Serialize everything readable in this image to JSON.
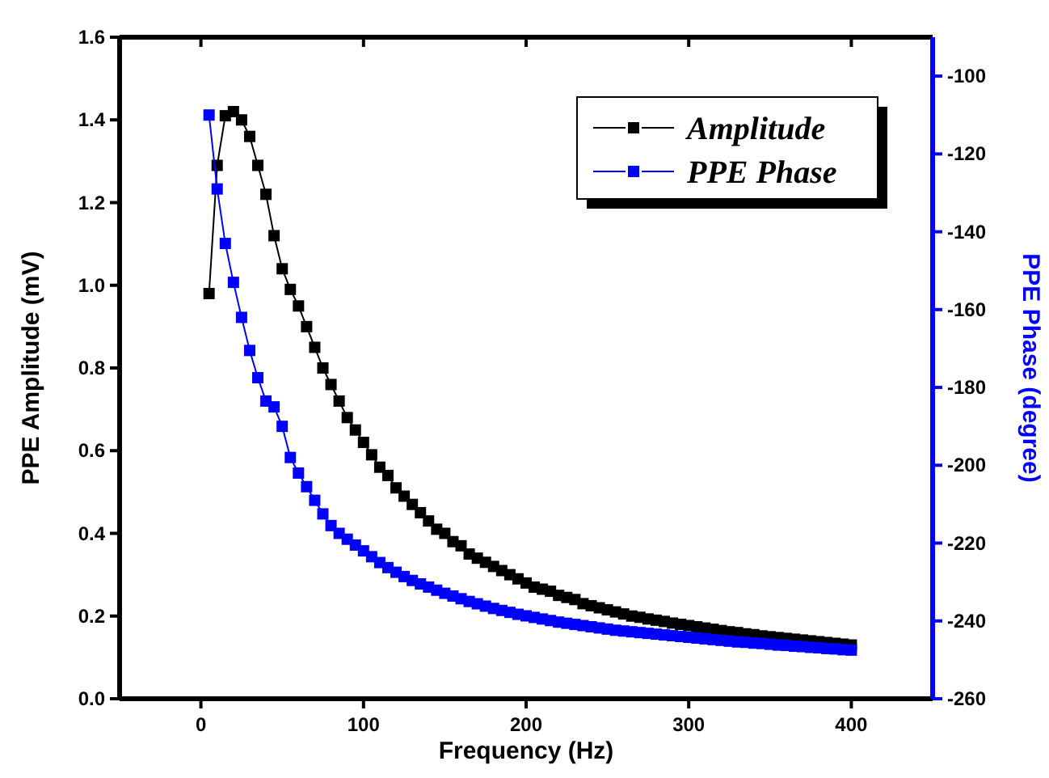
{
  "chart_data": {
    "type": "line",
    "xlabel": "Frequency (Hz)",
    "ylabel": "PPE Amplitude (mV)",
    "y2label": "PPE Phase (degree)",
    "x": [
      5,
      10,
      15,
      20,
      25,
      30,
      35,
      40,
      45,
      50,
      55,
      60,
      65,
      70,
      75,
      80,
      85,
      90,
      95,
      100,
      105,
      110,
      115,
      120,
      125,
      130,
      135,
      140,
      145,
      150,
      155,
      160,
      165,
      170,
      175,
      180,
      185,
      190,
      195,
      200,
      205,
      210,
      215,
      220,
      225,
      230,
      235,
      240,
      245,
      250,
      255,
      260,
      265,
      270,
      275,
      280,
      285,
      290,
      295,
      300,
      305,
      310,
      315,
      320,
      325,
      330,
      335,
      340,
      345,
      350,
      355,
      360,
      365,
      370,
      375,
      380,
      385,
      390,
      395,
      400
    ],
    "series": [
      {
        "name": "Amplitude",
        "color": "#000000",
        "values": [
          0.98,
          1.29,
          1.41,
          1.42,
          1.4,
          1.36,
          1.29,
          1.22,
          1.12,
          1.04,
          0.99,
          0.95,
          0.9,
          0.85,
          0.8,
          0.76,
          0.72,
          0.68,
          0.65,
          0.62,
          0.59,
          0.56,
          0.54,
          0.51,
          0.49,
          0.47,
          0.45,
          0.43,
          0.41,
          0.4,
          0.38,
          0.37,
          0.35,
          0.34,
          0.33,
          0.32,
          0.31,
          0.3,
          0.29,
          0.28,
          0.27,
          0.265,
          0.26,
          0.25,
          0.245,
          0.24,
          0.23,
          0.225,
          0.22,
          0.215,
          0.21,
          0.205,
          0.2,
          0.197,
          0.193,
          0.19,
          0.187,
          0.183,
          0.18,
          0.177,
          0.174,
          0.171,
          0.168,
          0.165,
          0.162,
          0.16,
          0.157,
          0.155,
          0.152,
          0.15,
          0.148,
          0.146,
          0.144,
          0.142,
          0.14,
          0.138,
          0.136,
          0.134,
          0.132,
          0.13
        ]
      },
      {
        "name": "PPE Phase",
        "color": "#0000ff",
        "axis": "y2",
        "values": [
          -110,
          -129,
          -143,
          -153,
          -162,
          -170.5,
          -177.5,
          -183.5,
          -185,
          -190,
          -198,
          -202,
          -205.5,
          -209,
          -212.5,
          -215.5,
          -217.5,
          -219,
          -220.5,
          -222,
          -223.5,
          -225,
          -226.3,
          -227.5,
          -228.6,
          -229.6,
          -230.5,
          -231.3,
          -232.1,
          -232.9,
          -233.6,
          -234.3,
          -235,
          -235.6,
          -236.2,
          -236.8,
          -237.3,
          -237.8,
          -238.3,
          -238.7,
          -239.1,
          -239.5,
          -239.9,
          -240.3,
          -240.6,
          -240.9,
          -241.2,
          -241.5,
          -241.8,
          -242.1,
          -242.4,
          -242.6,
          -242.8,
          -243,
          -243.2,
          -243.4,
          -243.6,
          -243.8,
          -244,
          -244.2,
          -244.4,
          -244.6,
          -244.8,
          -245,
          -245.2,
          -245.4,
          -245.5,
          -245.7,
          -245.8,
          -246,
          -246.2,
          -246.3,
          -246.5,
          -246.6,
          -246.8,
          -246.9,
          -247.1,
          -247.2,
          -247.4,
          -247.5
        ]
      }
    ],
    "xlim": [
      -50,
      450
    ],
    "xticks": [
      0,
      100,
      200,
      300,
      400
    ],
    "ylim": [
      0,
      1.6
    ],
    "yticks": [
      {
        "value": 0,
        "label": "0.0"
      },
      {
        "value": 0.2,
        "label": "0.2"
      },
      {
        "value": 0.4,
        "label": "0.4"
      },
      {
        "value": 0.6,
        "label": "0.6"
      },
      {
        "value": 0.8,
        "label": "0.8"
      },
      {
        "value": 1,
        "label": "1.0"
      },
      {
        "value": 1.2,
        "label": "1.2"
      },
      {
        "value": 1.4,
        "label": "1.4"
      },
      {
        "value": 1.6,
        "label": "1.6"
      }
    ],
    "y2lim": [
      -260,
      -90
    ],
    "y2ticks": [
      -260,
      -240,
      -220,
      -200,
      -180,
      -160,
      -140,
      -120,
      -100
    ],
    "legend": "top right",
    "marker": "square",
    "line_style": "solid",
    "grid": false
  }
}
